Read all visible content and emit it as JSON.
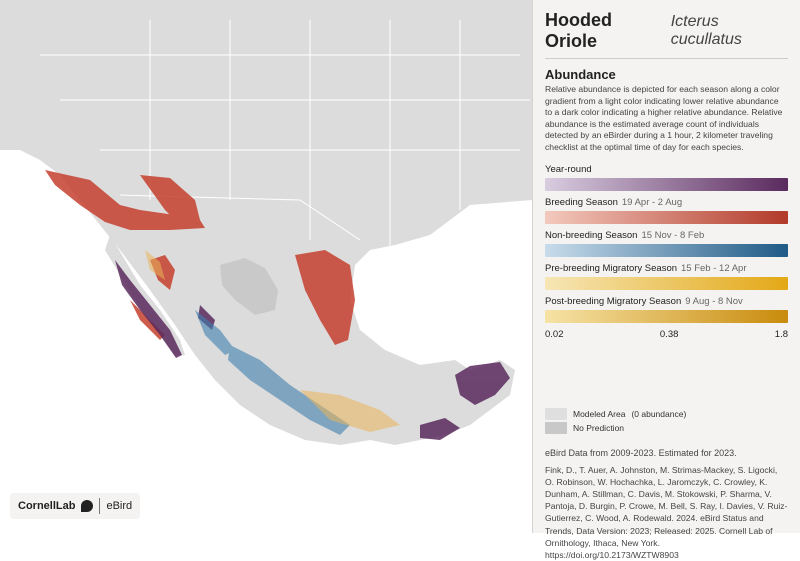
{
  "species": {
    "common_name": "Hooded Oriole",
    "scientific_name": "Icterus cucullatus"
  },
  "abundance": {
    "heading": "Abundance",
    "description": "Relative abundance is depicted for each season along a color gradient from a light color indicating lower relative abundance to a dark color indicating a higher relative abundance. Relative abundance is the estimated average count of individuals detected by an eBirder during a 1 hour, 2 kilometer traveling checklist at the optimal time of day for each species."
  },
  "seasons": [
    {
      "label": "Year-round",
      "dates": "",
      "color_light": "#d9cde0",
      "color_dark": "#5a2a5e"
    },
    {
      "label": "Breeding Season",
      "dates": "19 Apr - 2 Aug",
      "color_light": "#f3c9bd",
      "color_dark": "#b23a2a"
    },
    {
      "label": "Non-breeding Season",
      "dates": "15 Nov - 8 Feb",
      "color_light": "#c8dceb",
      "color_dark": "#1f5a86"
    },
    {
      "label": "Pre-breeding Migratory Season",
      "dates": "15 Feb - 12 Apr",
      "color_light": "#f6e6b5",
      "color_dark": "#e3a816"
    },
    {
      "label": "Post-breeding Migratory Season",
      "dates": "9 Aug - 8 Nov",
      "color_light": "#f6e3a6",
      "color_dark": "#c98b0c"
    }
  ],
  "scale": {
    "min": "0.02",
    "mid": "0.38",
    "max": "1.8"
  },
  "map_legend": {
    "modeled_area": "Modeled Area",
    "modeled_note": "(0 abundance)",
    "no_prediction": "No Prediction"
  },
  "data_note": "eBird Data from 2009-2023. Estimated for 2023.",
  "citation": "Fink, D., T. Auer, A. Johnston, M. Strimas-Mackey, S. Ligocki, O. Robinson, W. Hochachka, L. Jaromczyk, C. Crowley, K. Dunham, A. Stillman, C. Davis, M. Stokowski, P. Sharma, V. Pantoja, D. Burgin, P. Crowe, M. Bell, S. Ray, I. Davies, V. Ruiz-Gutierrez, C. Wood, A. Rodewald. 2024. eBird Status and Trends, Data Version: 2023; Released: 2025. Cornell Lab of Ornithology, Ithaca, New York. https://doi.org/10.2173/WZTW8903",
  "logo": {
    "cornell": "CornellLab",
    "ebird": "eBird"
  }
}
